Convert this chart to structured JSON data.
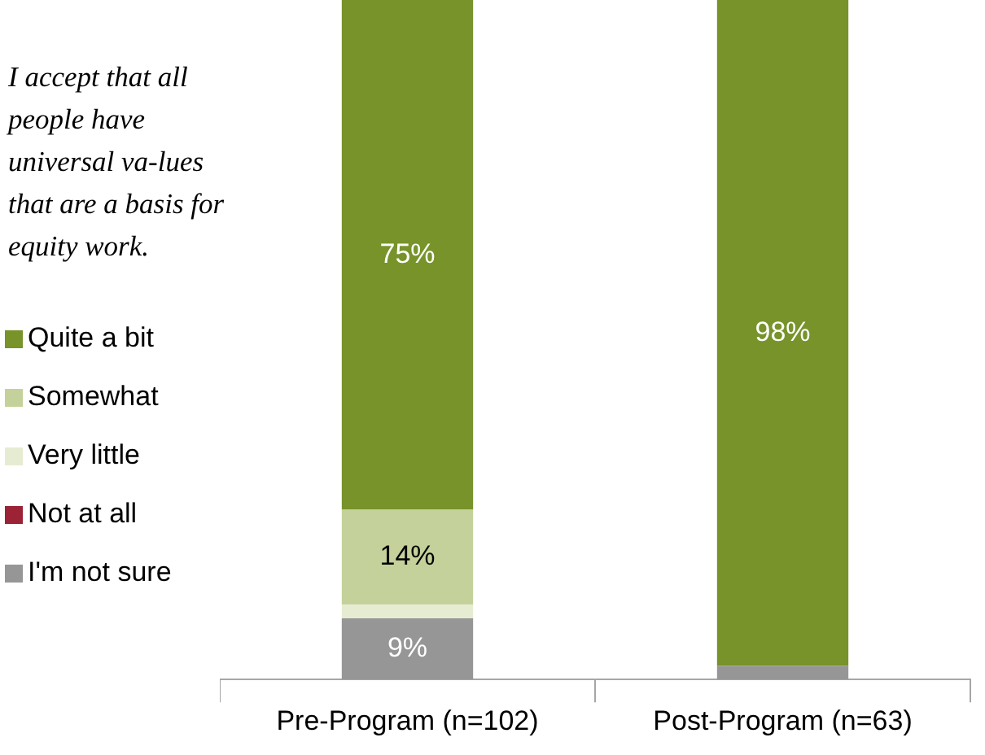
{
  "chart_data": {
    "type": "bar",
    "title": "I accept that all people have universal va-lues that are a basis for equity work.",
    "categories": [
      "Pre-Program (n=102)",
      "Post-Program (n=63)"
    ],
    "stacked": true,
    "ylim": [
      0,
      100
    ],
    "tick_labels": "x",
    "grid": false,
    "legend": "left",
    "series": [
      {
        "name": "I'm not sure",
        "color": "#969696",
        "values": [
          9,
          2
        ],
        "value_labels": [
          "9%",
          null
        ]
      },
      {
        "name": "Not at all",
        "color": "#9b2335",
        "values": [
          0,
          0
        ],
        "value_labels": [
          null,
          null
        ]
      },
      {
        "name": "Very little",
        "color": "#e6ecd2",
        "values": [
          2,
          0
        ],
        "value_labels": [
          null,
          null
        ]
      },
      {
        "name": "Somewhat",
        "color": "#c4d19a",
        "values": [
          14,
          0
        ],
        "value_labels": [
          "14%",
          null
        ]
      },
      {
        "name": "Quite a bit",
        "color": "#77932a",
        "values": [
          75,
          98
        ],
        "value_labels": [
          "75%",
          "98%"
        ]
      }
    ]
  }
}
